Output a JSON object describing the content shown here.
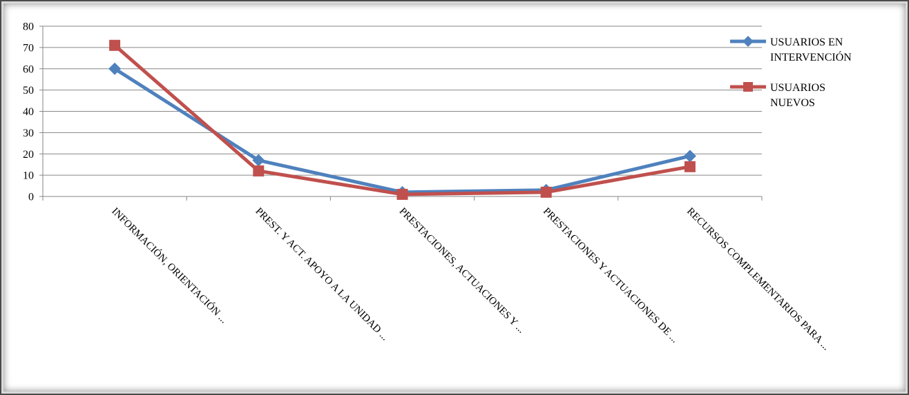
{
  "chart_data": {
    "type": "line",
    "title": "",
    "xlabel": "",
    "ylabel": "",
    "ylim": [
      0,
      80
    ],
    "yticks": [
      0,
      10,
      20,
      30,
      40,
      50,
      60,
      70,
      80
    ],
    "grid": "horizontal",
    "legend_position": "right",
    "categories": [
      "INFORMACIÓN, ORIENTACIÓN ...",
      "PREST. Y ACT. APOYO A LA UNIDAD ...",
      "PRESTACIONES, ACTUACIONES Y ...",
      "PRESTACIONES  Y ACTUACIONES DE ...",
      "RECURSOS COMPLEMENTARIOS PARA ..."
    ],
    "series": [
      {
        "name_lines": [
          "USUARIOS EN",
          "INTERVENCIÓN"
        ],
        "color": "#4F81BD",
        "marker": "diamond",
        "values": [
          60,
          17,
          2,
          3,
          19
        ]
      },
      {
        "name_lines": [
          "USUARIOS",
          "NUEVOS"
        ],
        "color": "#C0504D",
        "marker": "square",
        "values": [
          71,
          12,
          1,
          2,
          14
        ]
      }
    ]
  }
}
